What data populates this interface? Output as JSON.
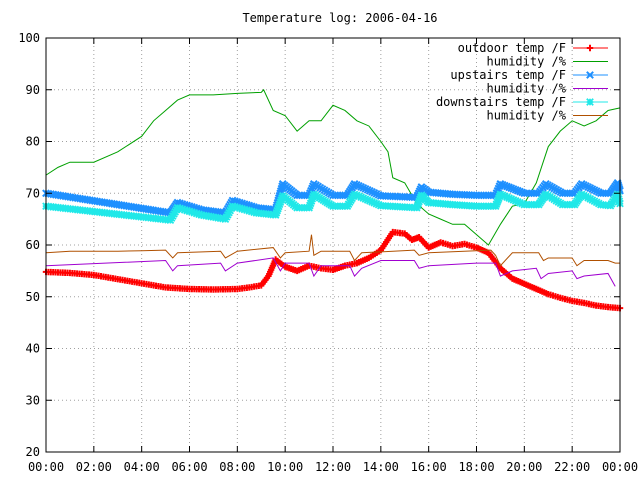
{
  "chart_data": {
    "type": "line",
    "title": "Temperature log: 2006-04-16",
    "xlabel": "",
    "ylabel": "",
    "x_ticks": [
      "00:00",
      "02:00",
      "04:00",
      "06:00",
      "08:00",
      "10:00",
      "12:00",
      "14:00",
      "16:00",
      "18:00",
      "20:00",
      "22:00",
      "00:00"
    ],
    "y_ticks": [
      20,
      30,
      40,
      50,
      60,
      70,
      80,
      90,
      100
    ],
    "xlim": [
      0,
      24
    ],
    "ylim": [
      20,
      100
    ],
    "grid": true,
    "legend_position": "top-right",
    "series": [
      {
        "name": "outdoor temp /F",
        "color": "#ff0000",
        "marker": "plus",
        "points": [
          [
            0,
            54.8
          ],
          [
            1,
            54.6
          ],
          [
            2,
            54.2
          ],
          [
            3,
            53.4
          ],
          [
            4,
            52.6
          ],
          [
            5,
            51.8
          ],
          [
            6,
            51.5
          ],
          [
            7,
            51.4
          ],
          [
            8,
            51.5
          ],
          [
            8.5,
            51.8
          ],
          [
            9,
            52.2
          ],
          [
            9.3,
            54
          ],
          [
            9.6,
            57.2
          ],
          [
            10,
            55.8
          ],
          [
            10.5,
            55
          ],
          [
            11,
            56
          ],
          [
            11.5,
            55.5
          ],
          [
            12,
            55.2
          ],
          [
            12.5,
            56
          ],
          [
            13,
            56.5
          ],
          [
            13.5,
            57.5
          ],
          [
            14,
            59
          ],
          [
            14.5,
            62.5
          ],
          [
            15,
            62.2
          ],
          [
            15.3,
            61
          ],
          [
            15.6,
            61.5
          ],
          [
            16,
            59.5
          ],
          [
            16.5,
            60.5
          ],
          [
            17,
            59.8
          ],
          [
            17.5,
            60.2
          ],
          [
            18,
            59.5
          ],
          [
            18.5,
            58.5
          ],
          [
            19,
            55.5
          ],
          [
            19.5,
            53.5
          ],
          [
            20,
            52.5
          ],
          [
            20.5,
            51.5
          ],
          [
            21,
            50.5
          ],
          [
            21.5,
            49.8
          ],
          [
            22,
            49.2
          ],
          [
            22.5,
            48.8
          ],
          [
            23,
            48.3
          ],
          [
            23.5,
            48
          ],
          [
            24,
            47.8
          ]
        ]
      },
      {
        "name": "humidity /%",
        "color": "#00a000",
        "marker": "none",
        "points": [
          [
            0,
            73.5
          ],
          [
            0.5,
            75
          ],
          [
            1,
            76
          ],
          [
            2,
            76
          ],
          [
            3,
            78
          ],
          [
            4,
            81
          ],
          [
            4.5,
            84
          ],
          [
            5,
            86
          ],
          [
            5.5,
            88
          ],
          [
            6,
            89
          ],
          [
            7,
            89
          ],
          [
            8,
            89.3
          ],
          [
            9,
            89.5
          ],
          [
            9.1,
            90
          ],
          [
            9.5,
            86
          ],
          [
            10,
            85
          ],
          [
            10.5,
            82
          ],
          [
            11,
            84
          ],
          [
            11.5,
            84
          ],
          [
            12,
            87
          ],
          [
            12.5,
            86
          ],
          [
            13,
            84
          ],
          [
            13.5,
            83
          ],
          [
            14,
            80
          ],
          [
            14.3,
            78
          ],
          [
            14.5,
            73
          ],
          [
            15,
            72
          ],
          [
            15.5,
            68
          ],
          [
            16,
            66
          ],
          [
            16.5,
            65
          ],
          [
            17,
            64
          ],
          [
            17.5,
            64
          ],
          [
            18,
            62
          ],
          [
            18.5,
            60
          ],
          [
            19,
            64
          ],
          [
            19.5,
            67.5
          ],
          [
            20,
            68
          ],
          [
            20.5,
            72
          ],
          [
            21,
            79
          ],
          [
            21.5,
            82
          ],
          [
            22,
            84
          ],
          [
            22.5,
            83
          ],
          [
            23,
            84
          ],
          [
            23.5,
            86
          ],
          [
            24,
            86.5
          ]
        ]
      },
      {
        "name": "upstairs temp /F",
        "color": "#1e90ff",
        "marker": "cross",
        "points": [
          [
            0,
            70
          ],
          [
            5.2,
            66.2
          ],
          [
            5.5,
            68.2
          ],
          [
            6.5,
            66.8
          ],
          [
            7.5,
            66.2
          ],
          [
            7.8,
            68.6
          ],
          [
            8.8,
            67.2
          ],
          [
            9.6,
            66.8
          ],
          [
            9.9,
            71.8
          ],
          [
            10.5,
            69.6
          ],
          [
            11,
            69.6
          ],
          [
            11.2,
            71.8
          ],
          [
            12,
            69.6
          ],
          [
            12.6,
            69.6
          ],
          [
            12.9,
            71.8
          ],
          [
            14,
            69.5
          ],
          [
            15.5,
            69.2
          ],
          [
            15.7,
            71.2
          ],
          [
            16,
            70.2
          ],
          [
            17,
            69.8
          ],
          [
            18,
            69.6
          ],
          [
            18.8,
            69.6
          ],
          [
            19,
            71.8
          ],
          [
            20,
            70
          ],
          [
            20.6,
            70
          ],
          [
            20.9,
            71.8
          ],
          [
            21.6,
            70
          ],
          [
            22.1,
            70
          ],
          [
            22.4,
            71.8
          ],
          [
            23.2,
            70
          ],
          [
            23.6,
            70
          ],
          [
            23.9,
            72
          ],
          [
            24,
            70.5
          ]
        ]
      },
      {
        "name": "humidity /%",
        "color": "#a000d0",
        "marker": "none",
        "points": [
          [
            0,
            56
          ],
          [
            5,
            57
          ],
          [
            5.3,
            55
          ],
          [
            5.5,
            56
          ],
          [
            7.3,
            56.5
          ],
          [
            7.5,
            55
          ],
          [
            8,
            56.5
          ],
          [
            9.5,
            57.5
          ],
          [
            9.8,
            55
          ],
          [
            10,
            56.5
          ],
          [
            11,
            56.5
          ],
          [
            11.2,
            54
          ],
          [
            11.5,
            56
          ],
          [
            12.7,
            56
          ],
          [
            12.9,
            54
          ],
          [
            13.2,
            55.5
          ],
          [
            14,
            57
          ],
          [
            15.4,
            57
          ],
          [
            15.6,
            55.5
          ],
          [
            16,
            56
          ],
          [
            18,
            56.5
          ],
          [
            18.8,
            56.5
          ],
          [
            19,
            54
          ],
          [
            19.5,
            55
          ],
          [
            20.5,
            55.5
          ],
          [
            20.7,
            53.5
          ],
          [
            21,
            54.5
          ],
          [
            22,
            55
          ],
          [
            22.2,
            53.5
          ],
          [
            22.5,
            54
          ],
          [
            23.5,
            54.5
          ],
          [
            23.8,
            52
          ]
        ]
      },
      {
        "name": "downstairs temp /F",
        "color": "#20e8e8",
        "marker": "star",
        "points": [
          [
            0,
            67.5
          ],
          [
            5.2,
            64.8
          ],
          [
            5.5,
            67.2
          ],
          [
            6.5,
            65.8
          ],
          [
            7.5,
            65
          ],
          [
            7.8,
            67.5
          ],
          [
            8.8,
            66.2
          ],
          [
            9.6,
            65.8
          ],
          [
            9.9,
            69.5
          ],
          [
            10.5,
            67.2
          ],
          [
            11,
            67.2
          ],
          [
            11.2,
            69.8
          ],
          [
            12,
            67.5
          ],
          [
            12.6,
            67.5
          ],
          [
            12.9,
            69.8
          ],
          [
            14,
            67.6
          ],
          [
            15.5,
            67.2
          ],
          [
            15.7,
            69.6
          ],
          [
            16,
            68.2
          ],
          [
            17,
            67.8
          ],
          [
            18,
            67.5
          ],
          [
            18.8,
            67.5
          ],
          [
            19,
            69.8
          ],
          [
            20,
            67.8
          ],
          [
            20.6,
            67.8
          ],
          [
            20.9,
            69.8
          ],
          [
            21.6,
            67.8
          ],
          [
            22.1,
            67.8
          ],
          [
            22.4,
            69.8
          ],
          [
            23.2,
            67.8
          ],
          [
            23.6,
            67.6
          ],
          [
            23.9,
            69.8
          ],
          [
            24,
            68
          ]
        ]
      },
      {
        "name": "humidity /%",
        "color": "#b05000",
        "marker": "none",
        "points": [
          [
            0,
            58.5
          ],
          [
            1,
            58.8
          ],
          [
            2,
            58.8
          ],
          [
            3,
            58.8
          ],
          [
            4,
            58.9
          ],
          [
            5,
            59
          ],
          [
            5.3,
            57.5
          ],
          [
            5.5,
            58.5
          ],
          [
            7.3,
            58.8
          ],
          [
            7.5,
            57.5
          ],
          [
            8,
            58.8
          ],
          [
            9.5,
            59.5
          ],
          [
            9.8,
            57.5
          ],
          [
            10,
            58.5
          ],
          [
            11,
            58.8
          ],
          [
            11.1,
            62
          ],
          [
            11.2,
            58
          ],
          [
            11.5,
            58.8
          ],
          [
            12.7,
            58.8
          ],
          [
            12.9,
            57
          ],
          [
            13.2,
            58.5
          ],
          [
            15.4,
            59
          ],
          [
            15.6,
            58
          ],
          [
            16,
            58.5
          ],
          [
            18.6,
            59
          ],
          [
            18.8,
            58
          ],
          [
            19,
            56
          ],
          [
            19.5,
            58.5
          ],
          [
            20.6,
            58.5
          ],
          [
            20.8,
            57
          ],
          [
            21,
            57.5
          ],
          [
            22,
            57.5
          ],
          [
            22.2,
            56
          ],
          [
            22.5,
            57
          ],
          [
            23.5,
            57
          ],
          [
            23.8,
            56.5
          ],
          [
            24,
            56.5
          ]
        ]
      }
    ]
  }
}
